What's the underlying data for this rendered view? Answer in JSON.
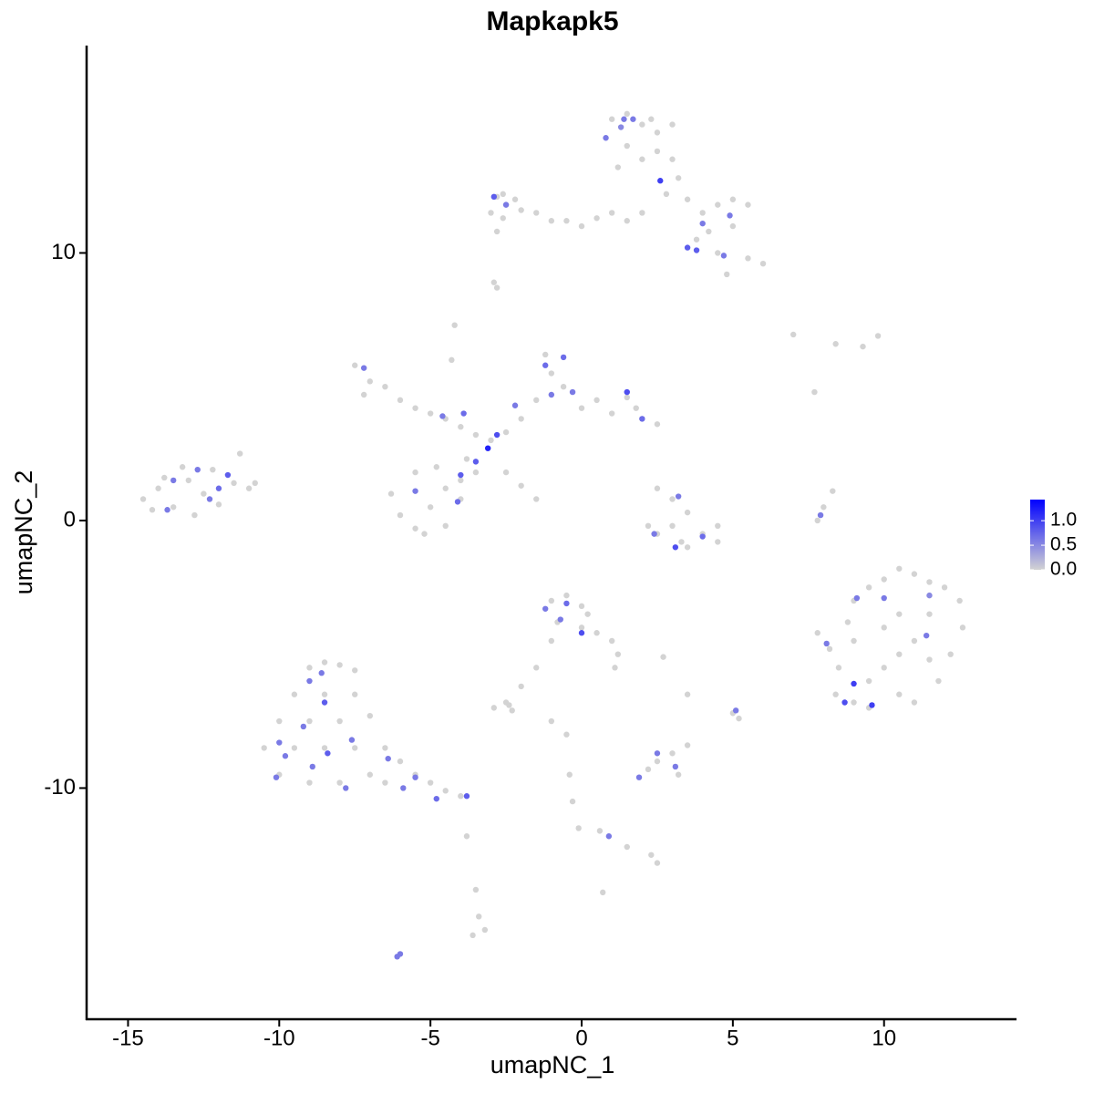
{
  "chart_data": {
    "type": "scatter",
    "title": "Mapkapk5",
    "x_label": "umapNC_1",
    "y_label": "umapNC_2",
    "xlim": [
      -16.37,
      14.38
    ],
    "ylim": [
      -18.64,
      17.75
    ],
    "xticks": [
      -15,
      -10,
      -5,
      0,
      5,
      10
    ],
    "yticks": [
      -10,
      0,
      10
    ],
    "colorbar": {
      "lim": [
        0,
        1.43
      ],
      "low": "#d3d3d3",
      "high": "#0000ff",
      "ticks": [
        {
          "value": 0,
          "label": "0.0"
        },
        {
          "value": 0.5,
          "label": "0.5"
        },
        {
          "value": 1,
          "label": "1.0"
        }
      ]
    },
    "x": [
      -14.5,
      -14,
      -13.5,
      -13,
      -12.5,
      -12,
      -11.5,
      -11,
      -13.2,
      -12.2,
      -14.2,
      -12.8,
      -11.3,
      -10.8,
      -13.8,
      -13.5,
      -12,
      -12.3,
      -11.7,
      -13.7,
      -12.7,
      -7.5,
      -7,
      -7.2,
      -6.5,
      -6,
      -5.5,
      -5,
      -4.5,
      -4,
      -3.5,
      -3,
      -2.5,
      -2,
      -1.5,
      -1,
      -1.2,
      -0.6,
      0,
      0.5,
      1,
      1.5,
      2,
      2.5,
      1.8,
      -4.2,
      -4.3,
      -6.3,
      -6,
      -5.5,
      -5,
      -4.5,
      -4,
      -4.5,
      -5.5,
      -4.8,
      -3.8,
      -4,
      -5.2,
      -3.5,
      -2.5,
      -2,
      -1.5,
      -4.6,
      -3.9,
      -3.1,
      -2.8,
      -3.5,
      -4,
      -5.5,
      -4.1,
      -1.2,
      -0.3,
      1.5,
      2,
      -1,
      -0.6,
      -7.2,
      -2.2,
      1,
      1.5,
      2,
      2.5,
      3,
      1.5,
      2,
      2.5,
      1.2,
      3,
      3.2,
      2.8,
      3.5,
      4,
      4.5,
      5,
      5.5,
      4.2,
      5,
      3.8,
      4.5,
      5.5,
      6,
      4.8,
      2,
      1.5,
      1,
      0.5,
      0,
      -0.5,
      -1,
      -1.5,
      -2,
      -2.5,
      -3,
      -2.8,
      -2.2,
      -2.8,
      -2.9,
      -2.6,
      2.3,
      1.4,
      0.8,
      2.6,
      3.5,
      3.8,
      4.9,
      4.7,
      -2.9,
      -2.5,
      4,
      1.7,
      1.3,
      7,
      8.4,
      9.3,
      9.8,
      7.7,
      7.8,
      8.0,
      8.3,
      7.9,
      2.5,
      3,
      3.5,
      3,
      2.5,
      3.3,
      4,
      4.5,
      4.5,
      3.5,
      2.2,
      2.4,
      3.1,
      4,
      3.2,
      9,
      9.5,
      10,
      10.5,
      11,
      11.5,
      12,
      12.5,
      12.6,
      12.2,
      11.8,
      11,
      10.5,
      9.5,
      9,
      8.4,
      8.5,
      9,
      8.8,
      10,
      10.5,
      11,
      11.5,
      10,
      9.5,
      10.5,
      11.5,
      7.8,
      8.2,
      9.1,
      10,
      11.4,
      9,
      8.7,
      9.6,
      8.1,
      11.5,
      -9,
      -8.5,
      -8,
      -7.5,
      -9.5,
      -8.5,
      -7.5,
      -10,
      -9,
      -8,
      -7,
      -10.5,
      -9.5,
      -8.5,
      -7.5,
      -6.5,
      -10,
      -9,
      -8,
      -7,
      -6,
      -5.5,
      -5,
      -4.5,
      -4,
      -6.5,
      -9,
      -8.6,
      -8.5,
      -10,
      -9.8,
      -8.4,
      -7.6,
      -8.9,
      -7.8,
      -6.4,
      -5.5,
      -5.9,
      -4.8,
      -3.8,
      -10.1,
      -9.2,
      -1,
      -0.5,
      0,
      -0.8,
      0,
      0.5,
      1,
      1.2,
      -1,
      -1.5,
      -2,
      -2.5,
      -2.9,
      -2.3,
      0.2,
      1.1,
      -1.2,
      -0.5,
      0,
      -0.7,
      -1,
      -0.5,
      -0.4,
      -0.3,
      -0.1,
      0.6,
      1.5,
      2.3,
      2.5,
      0.7,
      -3.8,
      -3.5,
      -3.4,
      -3.2,
      -3.6,
      2.7,
      2.2,
      2.5,
      3,
      3.2,
      3.5,
      5,
      5.2,
      3.5,
      -2.4,
      -2.6,
      -2.8,
      0.9,
      1.9,
      3.1,
      2.5,
      5.1,
      -6.0,
      -6.1
    ],
    "y": [
      0.8,
      1.2,
      0.5,
      1.5,
      1.0,
      0.6,
      1.4,
      1.2,
      2.0,
      1.9,
      0.4,
      0.2,
      2.5,
      1.4,
      1.6,
      1.5,
      1.2,
      0.8,
      1.7,
      0.4,
      1.9,
      5.8,
      5.2,
      4.7,
      5.0,
      4.5,
      4.2,
      4.0,
      3.8,
      3.5,
      3.2,
      3.0,
      3.3,
      3.8,
      4.5,
      5.5,
      6.2,
      5.0,
      4.2,
      4.5,
      4.0,
      4.6,
      3.8,
      3.6,
      4.2,
      7.3,
      6.0,
      1.0,
      0.2,
      -0.3,
      0.5,
      1.2,
      0.8,
      -0.2,
      1.8,
      2.0,
      2.3,
      1.5,
      -0.5,
      1.8,
      1.8,
      1.3,
      0.8,
      3.9,
      4.0,
      2.7,
      3.2,
      2.2,
      1.7,
      1.1,
      0.7,
      5.8,
      4.8,
      4.8,
      3.8,
      4.7,
      6.1,
      5.7,
      4.3,
      15.0,
      15.2,
      14.8,
      14.5,
      14.8,
      14,
      13.5,
      13.8,
      13.2,
      13.5,
      12.8,
      12.2,
      12,
      11.5,
      11.8,
      12,
      11.8,
      10.8,
      11,
      10.5,
      10,
      9.8,
      9.6,
      9.2,
      11.5,
      11.2,
      11.5,
      11.3,
      11,
      11.2,
      11.2,
      11.5,
      11.6,
      11.8,
      11.5,
      12.1,
      12.0,
      10.8,
      8.9,
      12.2,
      15.0,
      15.0,
      14.3,
      12.7,
      10.2,
      10.1,
      11.4,
      9.9,
      12.1,
      11.8,
      11.1,
      15.0,
      14.7,
      6.95,
      6.6,
      6.5,
      6.9,
      4.8,
      0,
      0.5,
      1.1,
      0.2,
      1.2,
      0.8,
      0.3,
      -0.2,
      -0.5,
      -0.8,
      -0.5,
      -0.2,
      -0.8,
      -1.0,
      -0.2,
      -0.5,
      -1.0,
      -0.6,
      0.9,
      -3,
      -2.5,
      -2.2,
      -1.8,
      -2,
      -2.3,
      -2.5,
      -3,
      -4,
      -5,
      -6,
      -6.8,
      -6.5,
      -7,
      -6.8,
      -6.5,
      -5.5,
      -4.5,
      -3.8,
      -4,
      -3.5,
      -4.5,
      -5.2,
      -5.5,
      -6,
      -5,
      -3.5,
      -4.2,
      -4.8,
      -2.9,
      -2.9,
      -4.3,
      -6.1,
      -6.8,
      -6.9,
      -4.6,
      -2.8,
      -5.5,
      -5.3,
      -5.4,
      -5.6,
      -6.5,
      -6.5,
      -6.5,
      -7.5,
      -7.5,
      -7.5,
      -7.3,
      -8.5,
      -8.5,
      -8.5,
      -8.5,
      -8.5,
      -9.5,
      -9.8,
      -9.8,
      -9.5,
      -9,
      -9.5,
      -9.8,
      -10.1,
      -10.3,
      -9.8,
      -6,
      -5.7,
      -6.8,
      -8.3,
      -8.8,
      -8.7,
      -8.2,
      -9.2,
      -10,
      -8.9,
      -9.6,
      -10.0,
      -10.4,
      -10.3,
      -9.6,
      -7.7,
      -3,
      -2.8,
      -3.2,
      -3.8,
      -4,
      -4.2,
      -4.5,
      -5,
      -4.5,
      -5.5,
      -6.2,
      -6.8,
      -7,
      -7.1,
      -3.5,
      -5.5,
      -3.3,
      -3.1,
      -4.2,
      -3.7,
      -7.5,
      -8,
      -9.5,
      -10.5,
      -11.5,
      -11.6,
      -12.2,
      -12.5,
      -12.8,
      -13.9,
      -11.8,
      -13.8,
      -14.8,
      -15.3,
      -15.5,
      -5.1,
      -9.3,
      -9,
      -8.7,
      -9.5,
      -8.4,
      -7.2,
      -7.4,
      -6.5,
      -6.9,
      11.3,
      8.7,
      -11.8,
      -9.6,
      -9.2,
      -8.7,
      -7.1,
      -16.2,
      -16.3
    ],
    "values": [
      0,
      0,
      0,
      0,
      0,
      0,
      0,
      0,
      0,
      0,
      0,
      0,
      0,
      0,
      0,
      0.6,
      0.7,
      0.6,
      0.8,
      0.6,
      0.6,
      0,
      0,
      0,
      0,
      0,
      0,
      0,
      0,
      0,
      0,
      0,
      0,
      0,
      0,
      0,
      0,
      0,
      0,
      0,
      0,
      0,
      0,
      0,
      0,
      0,
      0,
      0,
      0,
      0,
      0,
      0,
      0,
      0,
      0,
      0,
      0,
      0,
      0,
      0,
      0,
      0,
      0,
      0.6,
      0.7,
      1.2,
      0.9,
      0.8,
      0.8,
      0.6,
      0.7,
      0.7,
      0.6,
      0.9,
      0.7,
      0.6,
      0.7,
      0.6,
      0.6,
      0,
      0,
      0,
      0,
      0,
      0,
      0,
      0,
      0,
      0,
      0,
      0,
      0,
      0,
      0,
      0,
      0,
      0,
      0,
      0,
      0,
      0,
      0,
      0,
      0,
      0,
      0,
      0,
      0,
      0,
      0,
      0,
      0,
      0,
      0,
      0,
      0,
      0,
      0,
      0,
      0,
      0.6,
      0.6,
      1.0,
      0.8,
      0.8,
      0.6,
      0.6,
      0.8,
      0.6,
      0.6,
      0.6,
      0.5,
      0,
      0,
      0,
      0,
      0,
      0,
      0,
      0,
      0.6,
      0,
      0,
      0,
      0,
      0,
      0,
      0,
      0,
      0,
      0,
      0,
      0.6,
      0.9,
      0.7,
      0.6,
      0,
      0,
      0,
      0,
      0,
      0,
      0,
      0,
      0,
      0,
      0,
      0,
      0,
      0,
      0,
      0,
      0,
      0,
      0,
      0,
      0,
      0,
      0,
      0,
      0,
      0,
      0,
      0,
      0,
      0.6,
      0.6,
      0.6,
      1.0,
      0.9,
      1.0,
      0.6,
      0.5,
      0,
      0,
      0,
      0,
      0,
      0,
      0,
      0,
      0,
      0,
      0,
      0,
      0,
      0,
      0,
      0,
      0,
      0,
      0,
      0,
      0,
      0,
      0,
      0,
      0,
      0,
      0.6,
      0.6,
      0.8,
      0.6,
      0.6,
      0.8,
      0.6,
      0.6,
      0.6,
      0.6,
      0.6,
      0.6,
      0.7,
      0.8,
      0.6,
      0.6,
      0,
      0,
      0,
      0,
      0,
      0,
      0,
      0,
      0,
      0,
      0,
      0,
      0,
      0,
      0,
      0,
      0.6,
      0.7,
      0.9,
      0.6,
      0,
      0,
      0,
      0,
      0,
      0,
      0,
      0,
      0,
      0,
      0,
      0,
      0,
      0,
      0,
      0,
      0,
      0,
      0,
      0,
      0,
      0,
      0,
      0,
      0,
      0,
      0,
      0.6,
      0.6,
      0.6,
      0.6,
      0.6,
      0.6,
      0.6
    ]
  }
}
